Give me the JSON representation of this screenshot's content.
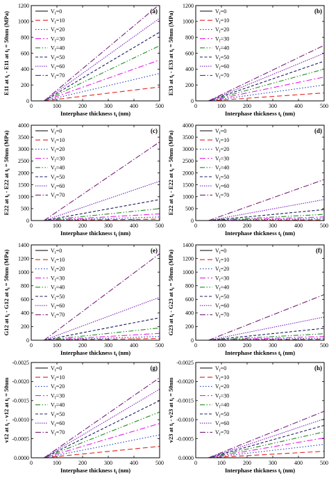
{
  "figure": {
    "styles": [
      {
        "color": "#000000",
        "dash": ""
      },
      {
        "color": "#e0201b",
        "dash": "7,4"
      },
      {
        "color": "#1f3fbf",
        "dash": "1.5,2.5"
      },
      {
        "color": "#e61ee6",
        "dash": "8,3,2,3"
      },
      {
        "color": "#1e8a1e",
        "dash": "7,2.5,1.5,2.5,1.5,2.5"
      },
      {
        "color": "#1a1a5e",
        "dash": "4,2.5"
      },
      {
        "color": "#7a1fbf",
        "dash": "1.5,1.5"
      },
      {
        "color": "#7a1f7a",
        "dash": "8,2.5,1.5,2.5"
      }
    ]
  },
  "chart_data": [
    {
      "type": "line",
      "panel": "(a)",
      "xlabel": "Interphase thickness t_i (nm)",
      "ylabel": "E11 at t_i - E11 at t_i = 50nm (MPa)",
      "xlim": [
        0,
        500
      ],
      "ylim": [
        0,
        1200
      ],
      "xticks": [
        "0",
        "100",
        "200",
        "300",
        "400",
        "500"
      ],
      "yticks": [
        "0",
        "200",
        "400",
        "600",
        "800",
        "1000",
        "1200"
      ],
      "legend_position": "upper-left",
      "x": [
        50,
        500
      ],
      "series": [
        {
          "name": "V_f=0",
          "values": [
            0,
            0
          ]
        },
        {
          "name": "V_f=10",
          "values": [
            0,
            175
          ]
        },
        {
          "name": "V_f=20",
          "values": [
            0,
            345
          ]
        },
        {
          "name": "V_f=30",
          "values": [
            0,
            515
          ]
        },
        {
          "name": "V_f=40",
          "values": [
            0,
            695
          ]
        },
        {
          "name": "V_f=50",
          "values": [
            0,
            865
          ]
        },
        {
          "name": "V_f=60",
          "values": [
            0,
            1040
          ]
        },
        {
          "name": "V_f=70",
          "values": [
            0,
            1215
          ]
        }
      ]
    },
    {
      "type": "line",
      "panel": "(b)",
      "xlabel": "Interphase thickness t_i (nm)",
      "ylabel": "E33 at t_i - E33 at t_i = 50nm (MPa)",
      "xlim": [
        0,
        500
      ],
      "ylim": [
        0,
        1200
      ],
      "xticks": [
        "0",
        "100",
        "200",
        "300",
        "400",
        "500"
      ],
      "yticks": [
        "0",
        "200",
        "400",
        "600",
        "800",
        "1000",
        "1200"
      ],
      "legend_position": "upper-left",
      "x": [
        50,
        500
      ],
      "series": [
        {
          "name": "V_f=0",
          "values": [
            0,
            0
          ]
        },
        {
          "name": "V_f=10",
          "values": [
            0,
            100
          ]
        },
        {
          "name": "V_f=20",
          "values": [
            0,
            200
          ]
        },
        {
          "name": "V_f=30",
          "values": [
            0,
            300
          ]
        },
        {
          "name": "V_f=40",
          "values": [
            0,
            400
          ]
        },
        {
          "name": "V_f=50",
          "values": [
            0,
            500
          ]
        },
        {
          "name": "V_f=60",
          "values": [
            0,
            600
          ]
        },
        {
          "name": "V_f=70",
          "values": [
            0,
            700
          ]
        }
      ]
    },
    {
      "type": "line",
      "panel": "(c)",
      "xlabel": "Interphase thickness t_i (nm)",
      "ylabel": "E22 at t_i - E22 at t_i = 50nm (MPa)",
      "xlim": [
        0,
        500
      ],
      "ylim": [
        0,
        4000
      ],
      "xticks": [
        "0",
        "100",
        "200",
        "300",
        "400",
        "500"
      ],
      "yticks": [
        "0",
        "500",
        "1000",
        "1500",
        "2000",
        "2500",
        "3000",
        "3500",
        "4000"
      ],
      "legend_position": "upper-left",
      "x": [
        50,
        500
      ],
      "series": [
        {
          "name": "V_f=0",
          "values": [
            0,
            0
          ]
        },
        {
          "name": "V_f=10",
          "values": [
            0,
            60
          ]
        },
        {
          "name": "V_f=20",
          "values": [
            0,
            150
          ]
        },
        {
          "name": "V_f=30",
          "values": [
            0,
            280
          ]
        },
        {
          "name": "V_f=40",
          "values": [
            0,
            500
          ]
        },
        {
          "name": "V_f=50",
          "values": [
            0,
            880
          ]
        },
        {
          "name": "V_f=60",
          "values": [
            0,
            1650
          ]
        },
        {
          "name": "V_f=70",
          "values": [
            0,
            3300
          ]
        }
      ]
    },
    {
      "type": "line",
      "panel": "(d)",
      "xlabel": "Interphase thickness t_i (nm)",
      "ylabel": "E22 at t_i - E22 at t_i = 50nm (MPa)",
      "xlim": [
        0,
        500
      ],
      "ylim": [
        0,
        4000
      ],
      "xticks": [
        "0",
        "100",
        "200",
        "300",
        "400",
        "500"
      ],
      "yticks": [
        "0",
        "500",
        "1000",
        "1500",
        "2000",
        "2500",
        "3000",
        "3500",
        "4000"
      ],
      "legend_position": "upper-left",
      "x": [
        50,
        500
      ],
      "series": [
        {
          "name": "V_f=0",
          "values": [
            0,
            0
          ]
        },
        {
          "name": "V_f=10",
          "values": [
            0,
            30
          ]
        },
        {
          "name": "V_f=20",
          "values": [
            0,
            80
          ]
        },
        {
          "name": "V_f=30",
          "values": [
            0,
            150
          ]
        },
        {
          "name": "V_f=40",
          "values": [
            0,
            260
          ]
        },
        {
          "name": "V_f=50",
          "values": [
            0,
            460
          ]
        },
        {
          "name": "V_f=60",
          "values": [
            0,
            880
          ]
        },
        {
          "name": "V_f=70",
          "values": [
            0,
            1720
          ]
        }
      ]
    },
    {
      "type": "line",
      "panel": "(e)",
      "xlabel": "Interphase thickness t_i (nm)",
      "ylabel": "G12 at t_i - G12 at t_i = 50nm (MPa)",
      "xlim": [
        0,
        500
      ],
      "ylim": [
        0,
        1400
      ],
      "xticks": [
        "0",
        "100",
        "200",
        "300",
        "400",
        "500"
      ],
      "yticks": [
        "0",
        "200",
        "400",
        "600",
        "800",
        "1000",
        "1200",
        "1400"
      ],
      "legend_position": "upper-left",
      "x": [
        50,
        500
      ],
      "series": [
        {
          "name": "V_f=0",
          "values": [
            0,
            0
          ]
        },
        {
          "name": "V_f=10",
          "values": [
            0,
            25
          ]
        },
        {
          "name": "V_f=20",
          "values": [
            0,
            55
          ]
        },
        {
          "name": "V_f=30",
          "values": [
            0,
            100
          ]
        },
        {
          "name": "V_f=40",
          "values": [
            0,
            180
          ]
        },
        {
          "name": "V_f=50",
          "values": [
            0,
            330
          ]
        },
        {
          "name": "V_f=60",
          "values": [
            0,
            630
          ]
        },
        {
          "name": "V_f=70",
          "values": [
            0,
            1270
          ]
        }
      ]
    },
    {
      "type": "line",
      "panel": "(f)",
      "xlabel": "Interphase thickness t_i (nm)",
      "ylabel": "G23 at t_i - G23 at t_i = 50nm (MPa)",
      "xlim": [
        0,
        500
      ],
      "ylim": [
        0,
        1400
      ],
      "xticks": [
        "0",
        "100",
        "200",
        "300",
        "400",
        "500"
      ],
      "yticks": [
        "0",
        "200",
        "400",
        "600",
        "800",
        "1000",
        "1200",
        "1400"
      ],
      "legend_position": "upper-left",
      "x": [
        50,
        500
      ],
      "series": [
        {
          "name": "V_f=0",
          "values": [
            0,
            0
          ]
        },
        {
          "name": "V_f=10",
          "values": [
            0,
            15
          ]
        },
        {
          "name": "V_f=20",
          "values": [
            0,
            30
          ]
        },
        {
          "name": "V_f=30",
          "values": [
            0,
            55
          ]
        },
        {
          "name": "V_f=40",
          "values": [
            0,
            95
          ]
        },
        {
          "name": "V_f=50",
          "values": [
            0,
            175
          ]
        },
        {
          "name": "V_f=60",
          "values": [
            0,
            340
          ]
        },
        {
          "name": "V_f=70",
          "values": [
            0,
            670
          ]
        }
      ]
    },
    {
      "type": "line",
      "panel": "(g)",
      "xlabel": "Interphase thickness t_i (nm)",
      "ylabel": "v12 at t_i - v12 at t_i = 50nm",
      "xlim": [
        0,
        500
      ],
      "ylim": [
        0,
        -0.0025
      ],
      "xticks": [
        "0",
        "100",
        "200",
        "300",
        "400",
        "500"
      ],
      "yticks": [
        "0.0000",
        "-0.0005",
        "-0.0010",
        "-0.0015",
        "-0.0020",
        "-0.0025"
      ],
      "legend_position": "upper-left",
      "x": [
        50,
        500
      ],
      "series": [
        {
          "name": "V_f=0",
          "values": [
            0,
            0
          ]
        },
        {
          "name": "V_f=10",
          "values": [
            0,
            -0.0003
          ]
        },
        {
          "name": "V_f=20",
          "values": [
            0,
            -0.0006
          ]
        },
        {
          "name": "V_f=30",
          "values": [
            0,
            -0.0009
          ]
        },
        {
          "name": "V_f=40",
          "values": [
            0,
            -0.0012
          ]
        },
        {
          "name": "V_f=50",
          "values": [
            0,
            -0.0015
          ]
        },
        {
          "name": "V_f=60",
          "values": [
            0,
            -0.0018
          ]
        },
        {
          "name": "V_f=70",
          "values": [
            0,
            -0.0021
          ]
        }
      ]
    },
    {
      "type": "line",
      "panel": "(h)",
      "xlabel": "Interphase thickness t_i (nm)",
      "ylabel": "v23 at t_i - v23 at t_i = 50nm",
      "xlim": [
        0,
        500
      ],
      "ylim": [
        0,
        -0.0025
      ],
      "xticks": [
        "0",
        "100",
        "200",
        "300",
        "400",
        "500"
      ],
      "yticks": [
        "0.0000",
        "-0.0005",
        "-0.0010",
        "-0.0015",
        "-0.0020",
        "-0.0025"
      ],
      "legend_position": "upper-left",
      "x": [
        50,
        500
      ],
      "series": [
        {
          "name": "V_f=0",
          "values": [
            0,
            0
          ]
        },
        {
          "name": "V_f=10",
          "values": [
            0,
            -0.00017
          ]
        },
        {
          "name": "V_f=20",
          "values": [
            0,
            -0.00035
          ]
        },
        {
          "name": "V_f=30",
          "values": [
            0,
            -0.00052
          ]
        },
        {
          "name": "V_f=40",
          "values": [
            0,
            -0.00068
          ]
        },
        {
          "name": "V_f=50",
          "values": [
            0,
            -0.00085
          ]
        },
        {
          "name": "V_f=60",
          "values": [
            0,
            -0.00102
          ]
        },
        {
          "name": "V_f=70",
          "values": [
            0,
            -0.00122
          ]
        }
      ]
    }
  ]
}
